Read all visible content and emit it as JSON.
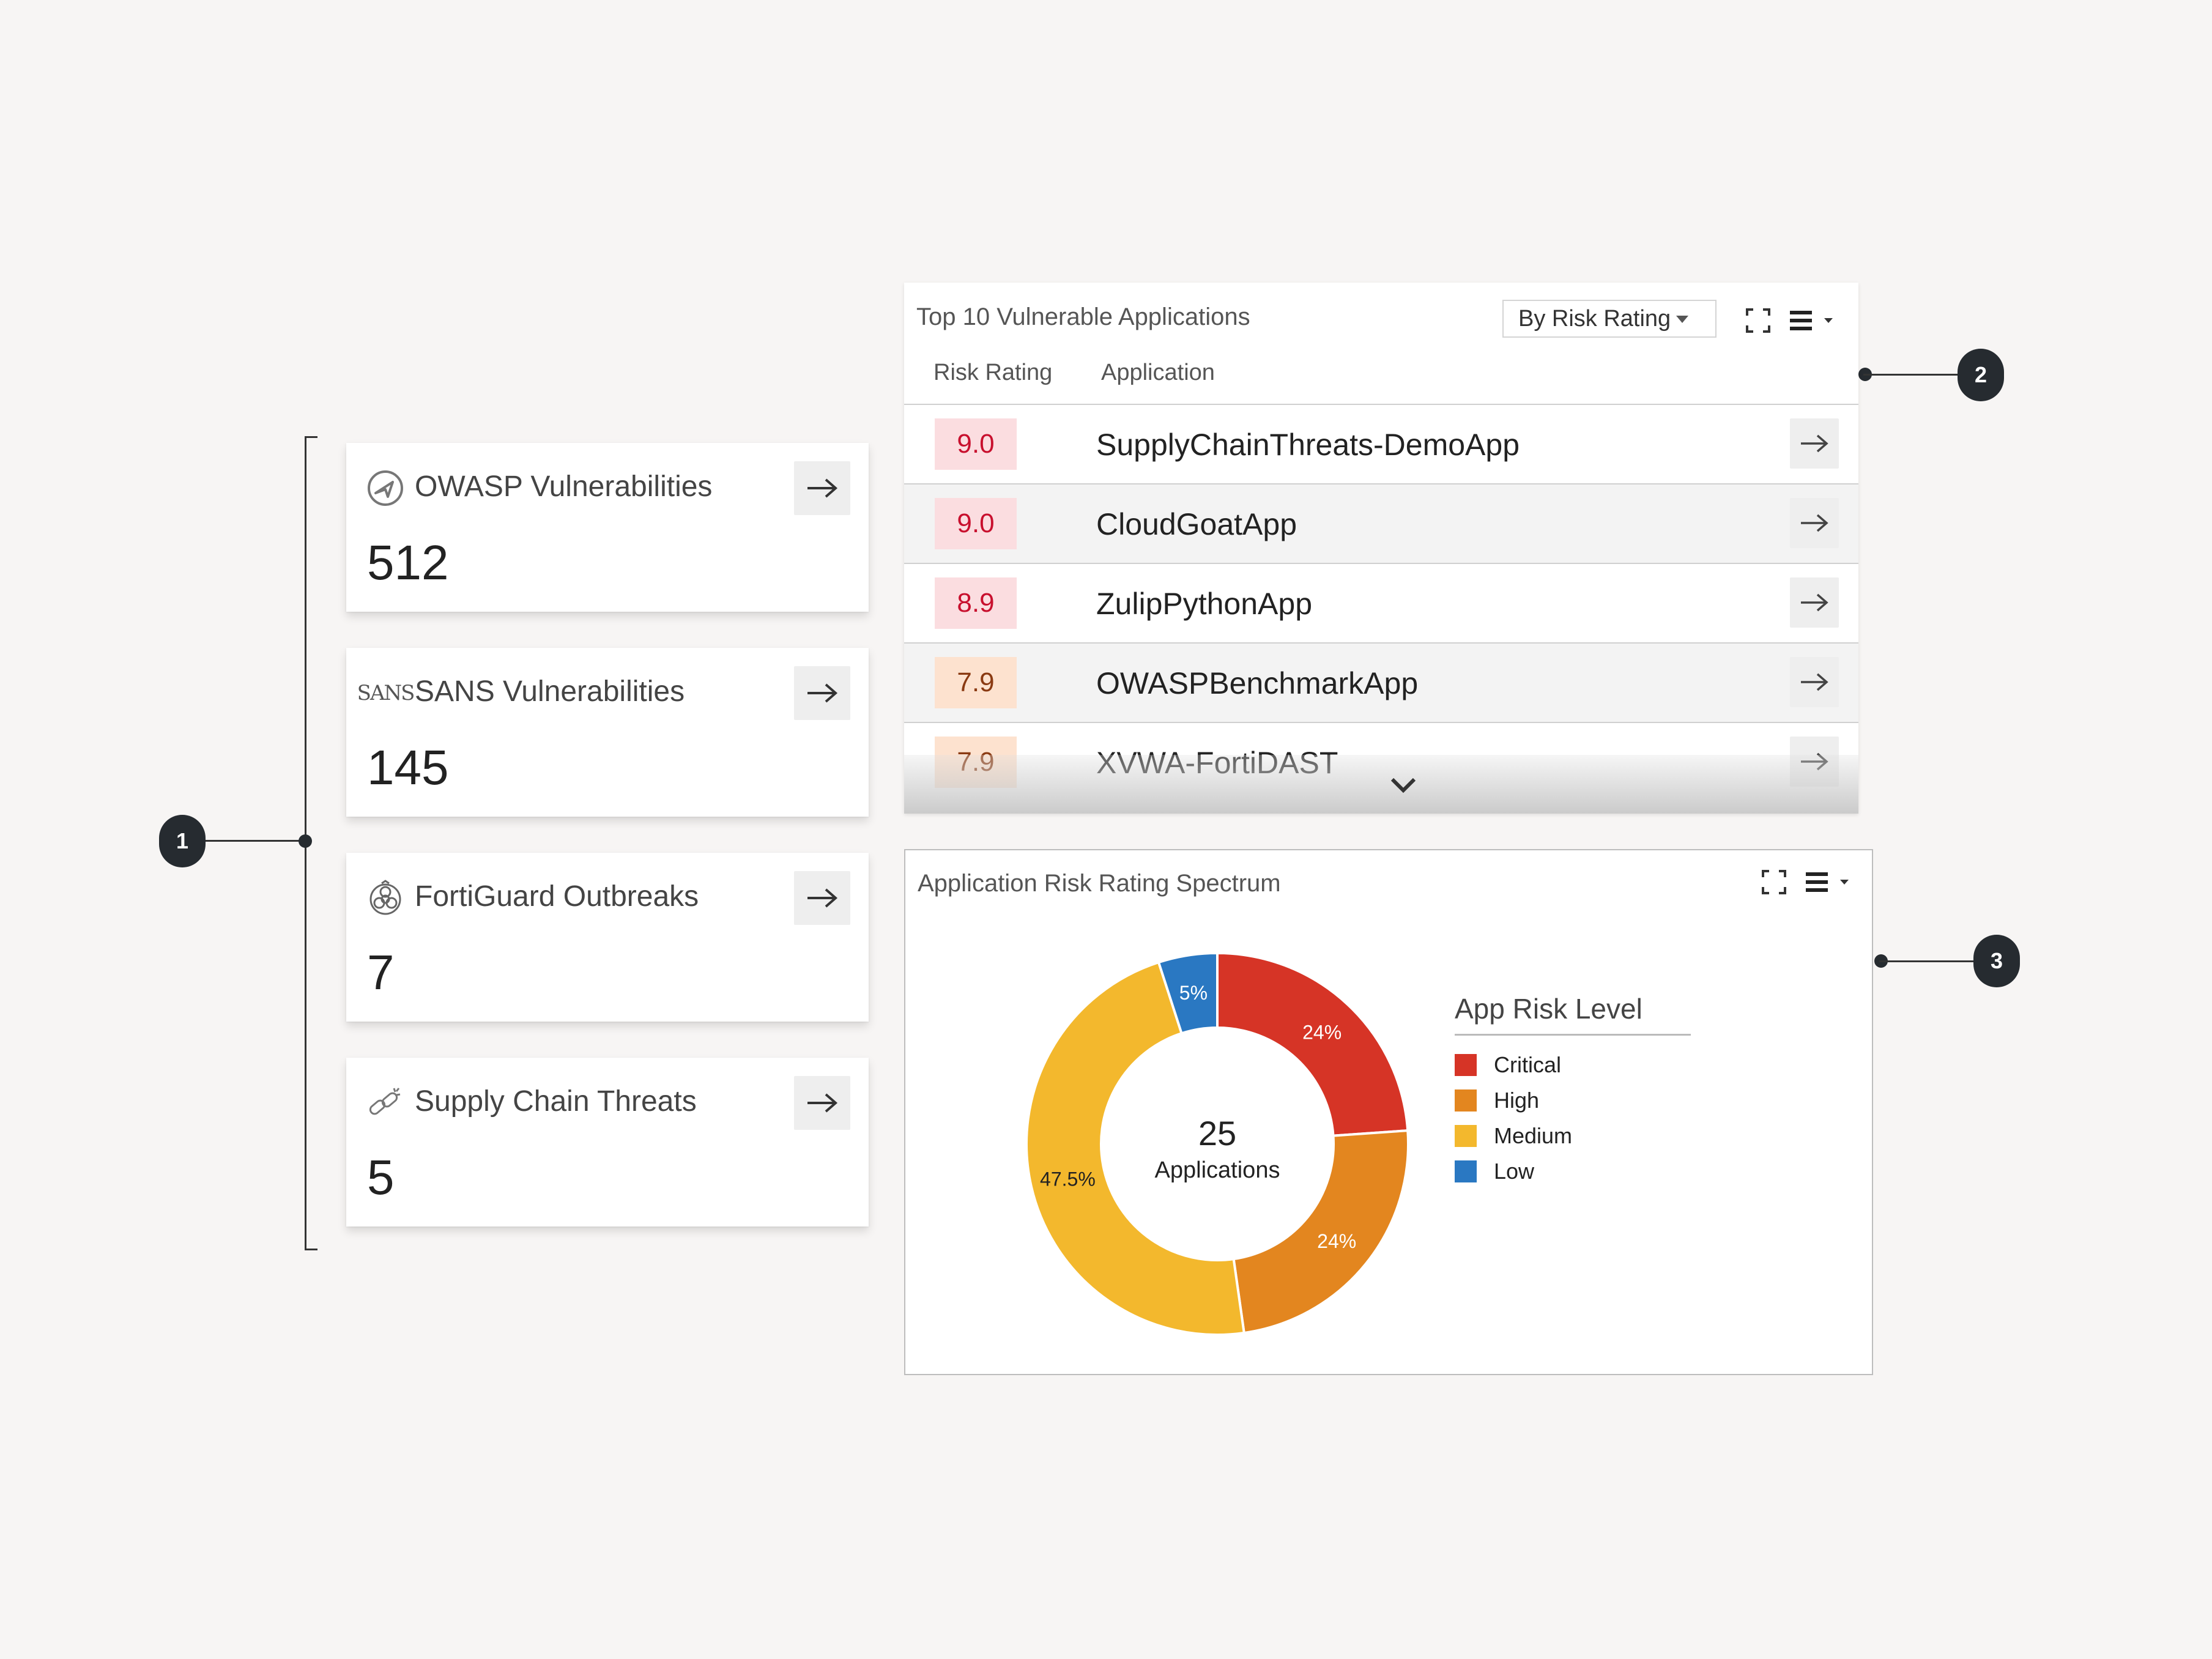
{
  "callouts": {
    "one": "1",
    "two": "2",
    "three": "3"
  },
  "stat_cards": [
    {
      "label": "OWASP Vulnerabilities",
      "value": "512",
      "icon": "owasp-icon"
    },
    {
      "label": "SANS Vulnerabilities",
      "value": "145",
      "icon": "sans-icon",
      "icon_text": "SANS"
    },
    {
      "label": "FortiGuard Outbreaks",
      "value": "7",
      "icon": "biohazard-icon"
    },
    {
      "label": "Supply Chain Threats",
      "value": "5",
      "icon": "chain-link-icon"
    }
  ],
  "top10": {
    "title": "Top 10 Vulnerable Applications",
    "sort_option": "By Risk Rating",
    "columns": {
      "risk": "Risk Rating",
      "app": "Application"
    },
    "rows": [
      {
        "score": "9.0",
        "name": "SupplyChainThreats-DemoApp",
        "level": "critical"
      },
      {
        "score": "9.0",
        "name": "CloudGoatApp",
        "level": "critical"
      },
      {
        "score": "8.9",
        "name": "ZulipPythonApp",
        "level": "critical"
      },
      {
        "score": "7.9",
        "name": "OWASPBenchmarkApp",
        "level": "high"
      },
      {
        "score": "7.9",
        "name": "XVWA-FortiDAST",
        "level": "high"
      }
    ]
  },
  "spectrum": {
    "title": "Application Risk Rating Spectrum",
    "center_value": "25",
    "center_label": "Applications",
    "legend_title": "App Risk Level"
  },
  "chart_data": {
    "type": "pie",
    "categories": [
      "Critical",
      "High",
      "Medium",
      "Low"
    ],
    "values": [
      24,
      24,
      47.5,
      5
    ],
    "labels": [
      "24%",
      "24%",
      "47.5%",
      "5%"
    ],
    "colors": [
      "#d63426",
      "#e3861f",
      "#f3b82d",
      "#2a78c2"
    ],
    "legend_title": "App Risk Level",
    "legend_position": "right"
  }
}
